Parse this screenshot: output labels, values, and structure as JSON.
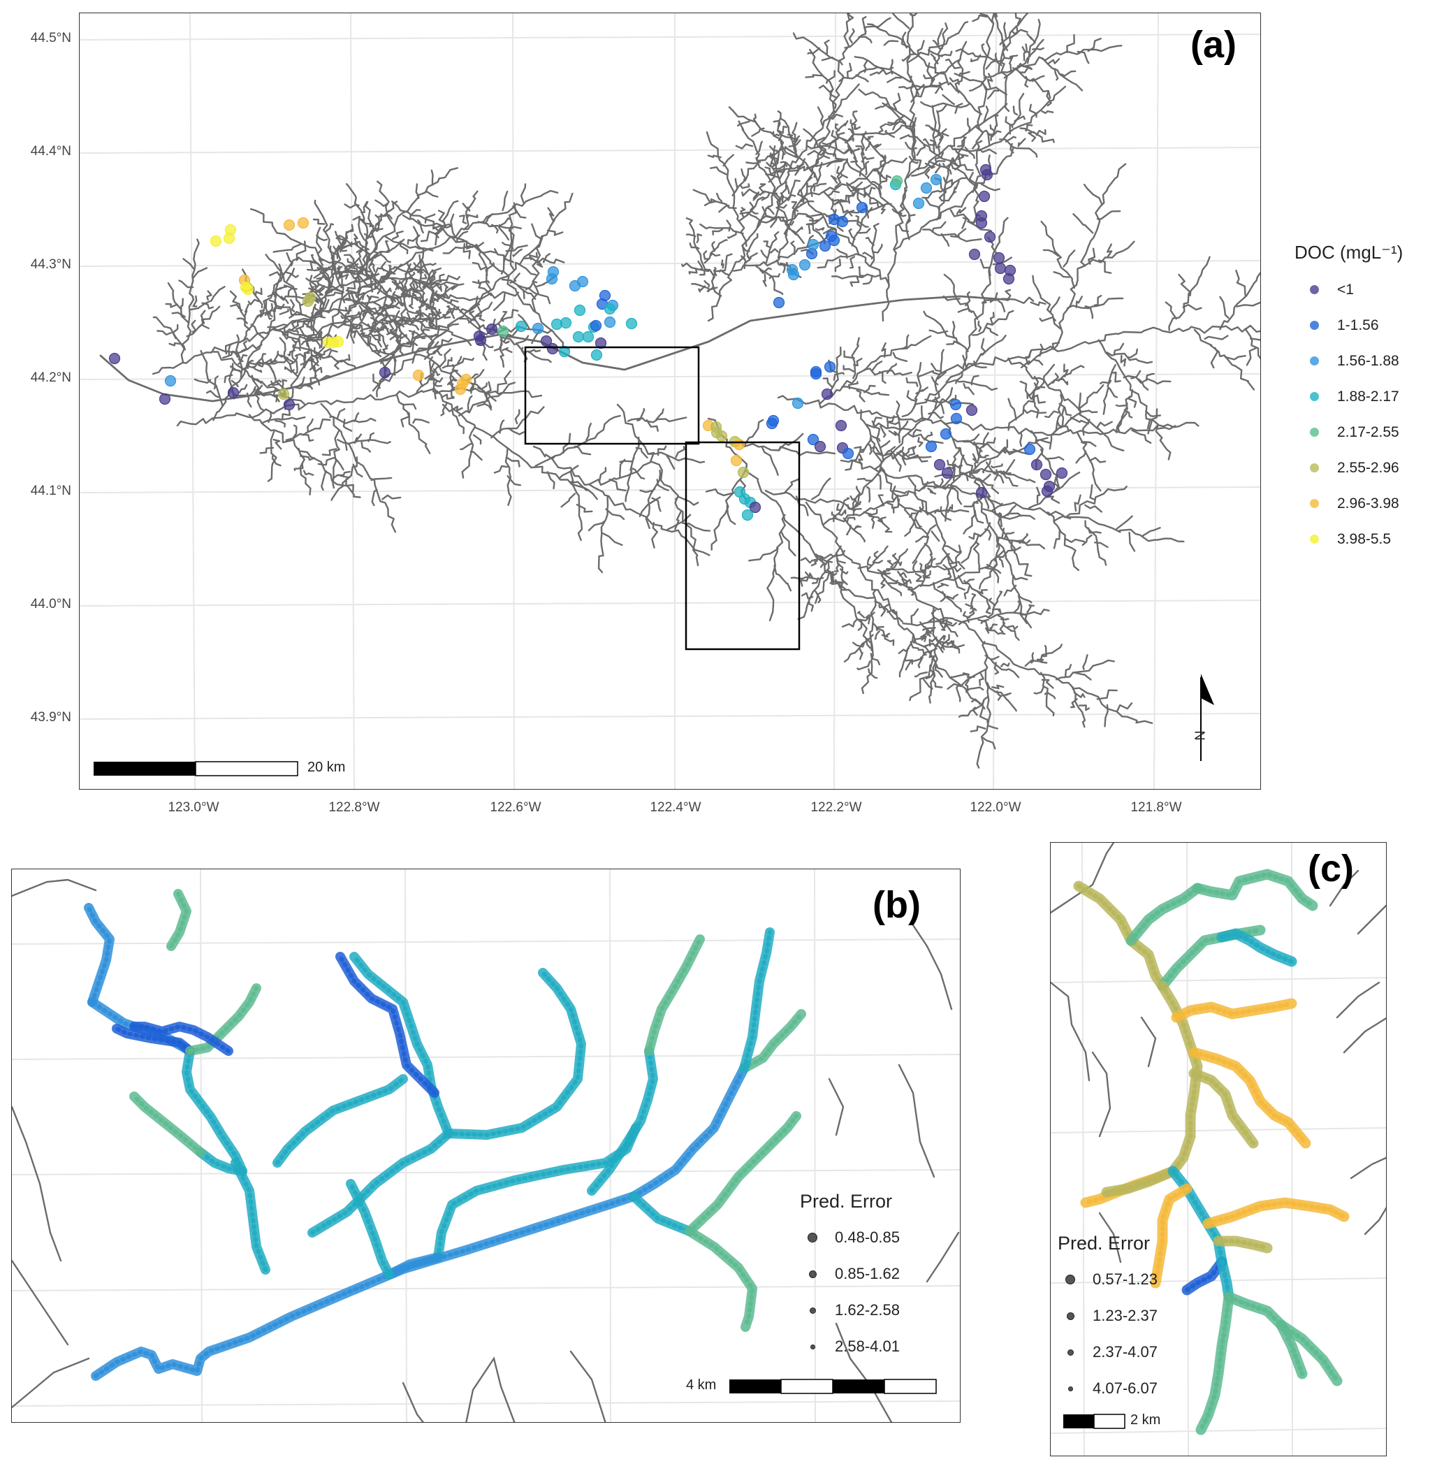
{
  "panel_a": {
    "label": "(a)",
    "y_ticks": [
      "44.5°N",
      "44.4°N",
      "44.3°N",
      "44.2°N",
      "44.1°N",
      "44.0°N",
      "43.9°N"
    ],
    "x_ticks": [
      "123.0°W",
      "122.8°W",
      "122.6°W",
      "122.4°W",
      "122.2°W",
      "122.0°W",
      "121.8°W"
    ],
    "scale_bar_label": "20 km",
    "north_label": "N",
    "legend": {
      "title": "DOC (mgL⁻¹)",
      "items": [
        {
          "label": "<1",
          "color": "#4a3d8f"
        },
        {
          "label": "1-1.56",
          "color": "#1f66d9"
        },
        {
          "label": "1.56-1.88",
          "color": "#2f95de"
        },
        {
          "label": "1.88-2.17",
          "color": "#1db3c4"
        },
        {
          "label": "2.17-2.55",
          "color": "#58be8e"
        },
        {
          "label": "2.55-2.96",
          "color": "#b8bb5a"
        },
        {
          "label": "2.96-3.98",
          "color": "#f5b93a"
        },
        {
          "label": "3.98-5.5",
          "color": "#f5f034"
        }
      ]
    }
  },
  "panel_b": {
    "label": "(b)",
    "legend": {
      "title": "Pred. Error",
      "items": [
        {
          "label": "0.48-0.85",
          "size": 12
        },
        {
          "label": "0.85-1.62",
          "size": 9
        },
        {
          "label": "1.62-2.58",
          "size": 7
        },
        {
          "label": "2.58-4.01",
          "size": 5
        }
      ]
    },
    "scale_bar_label": "4 km"
  },
  "panel_c": {
    "label": "(c)",
    "legend": {
      "title": "Pred. Error",
      "items": [
        {
          "label": "0.57-1.23",
          "size": 12
        },
        {
          "label": "1.23-2.37",
          "size": 9
        },
        {
          "label": "2.37-4.07",
          "size": 7
        },
        {
          "label": "4.07-6.07",
          "size": 5
        }
      ]
    },
    "scale_bar_label": "2 km"
  }
}
